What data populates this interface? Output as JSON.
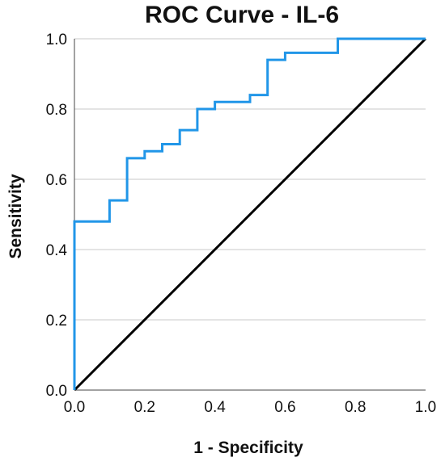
{
  "chart_data": {
    "type": "line",
    "title": "ROC Curve - IL-6",
    "xlabel": "1 - Specificity",
    "ylabel": "Sensitivity",
    "xlim": [
      0,
      1
    ],
    "ylim": [
      0,
      1
    ],
    "xticks": [
      "0.0",
      "0.2",
      "0.4",
      "0.6",
      "0.8",
      "1.0"
    ],
    "yticks": [
      "0.0",
      "0.2",
      "0.4",
      "0.6",
      "0.8",
      "1.0"
    ],
    "grid": "horizontal",
    "legend": "none",
    "series": [
      {
        "color": "#2196e8",
        "x": [
          0.0,
          0.0,
          0.1,
          0.1,
          0.15,
          0.15,
          0.2,
          0.2,
          0.25,
          0.25,
          0.3,
          0.3,
          0.35,
          0.35,
          0.4,
          0.4,
          0.5,
          0.5,
          0.55,
          0.55,
          0.6,
          0.6,
          0.75,
          0.75,
          1.0
        ],
        "y": [
          0.0,
          0.48,
          0.48,
          0.54,
          0.54,
          0.66,
          0.66,
          0.68,
          0.68,
          0.7,
          0.7,
          0.74,
          0.74,
          0.8,
          0.8,
          0.82,
          0.82,
          0.84,
          0.84,
          0.94,
          0.94,
          0.96,
          0.96,
          1.0,
          1.0
        ]
      },
      {
        "color": "#000000",
        "x": [
          0.0,
          1.0
        ],
        "y": [
          0.0,
          1.0
        ]
      }
    ]
  }
}
